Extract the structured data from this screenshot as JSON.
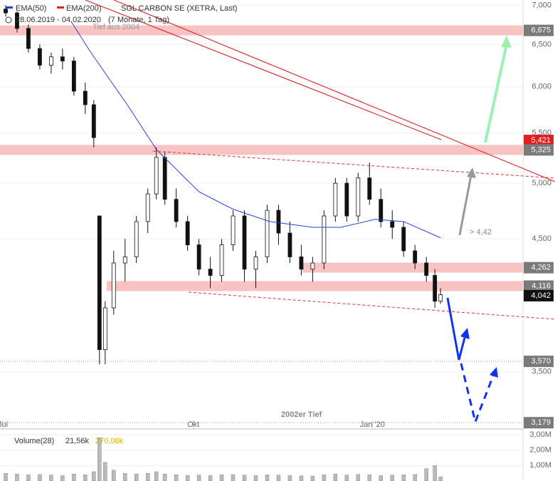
{
  "chart_data": {
    "type": "candlestick",
    "title": "SGL CARBON SE (XETRA, Last)",
    "subtitle": "28.06.2019 - 04.02.2020",
    "period": "(7 Monate, 1 Tag)",
    "log_scale": true,
    "ylim": [
      3150,
      7070
    ],
    "yticks": [
      {
        "value": 3500,
        "label": "3,500"
      },
      {
        "value": 4500,
        "label": "4,500"
      },
      {
        "value": 5000,
        "label": "5,000"
      },
      {
        "value": 5500,
        "label": "5,500"
      },
      {
        "value": 6000,
        "label": "6,000"
      },
      {
        "value": 6500,
        "label": "6,500"
      },
      {
        "value": 7000,
        "label": "7,000"
      }
    ],
    "xlim": [
      0,
      184
    ],
    "xticks": [
      {
        "value": 1,
        "label": "Jul"
      },
      {
        "value": 68,
        "label": "Okt"
      },
      {
        "value": 131,
        "label": "Jan '20"
      }
    ],
    "x": [
      2,
      6,
      10,
      14,
      18,
      22,
      26,
      30,
      33,
      35,
      37,
      40,
      44,
      48,
      52,
      55,
      58,
      62,
      66,
      70,
      74,
      78,
      82,
      86,
      90,
      94,
      98,
      102,
      106,
      110,
      114,
      118,
      122,
      126,
      130,
      134,
      138,
      142,
      146,
      150,
      153,
      155
    ],
    "open": [
      6950,
      6900,
      6700,
      6450,
      6250,
      6350,
      6300,
      5950,
      5800,
      4700,
      3650,
      3950,
      4300,
      4350,
      4650,
      4900,
      5250,
      4850,
      4650,
      4450,
      4250,
      4200,
      4450,
      4700,
      4250,
      4350,
      4750,
      4550,
      4350,
      4250,
      4300,
      4700,
      5000,
      4700,
      5050,
      4850,
      4650,
      4600,
      4400,
      4300,
      4200,
      4000
    ],
    "high": [
      7000,
      6920,
      6750,
      6500,
      6400,
      6450,
      6350,
      6050,
      5850,
      4700,
      4000,
      4400,
      4500,
      4700,
      4950,
      5350,
      5300,
      4950,
      4700,
      4500,
      4350,
      4500,
      4750,
      4750,
      4400,
      4800,
      4800,
      4650,
      4450,
      4350,
      4750,
      5050,
      5050,
      5100,
      5200,
      4950,
      4750,
      4650,
      4450,
      4350,
      4250,
      4100
    ],
    "low": [
      6850,
      6650,
      6400,
      6200,
      6150,
      6200,
      5900,
      5700,
      5350,
      3550,
      3550,
      3900,
      4150,
      4300,
      4550,
      4850,
      4800,
      4600,
      4400,
      4200,
      4100,
      4150,
      4400,
      4150,
      4100,
      4300,
      4450,
      4300,
      4200,
      4150,
      4250,
      4650,
      4650,
      4650,
      4800,
      4600,
      4500,
      4350,
      4250,
      4150,
      3950,
      3980
    ],
    "close": [
      6900,
      6700,
      6450,
      6250,
      6350,
      6300,
      5950,
      5800,
      5450,
      3650,
      3950,
      4300,
      4350,
      4650,
      4900,
      5250,
      4850,
      4650,
      4450,
      4250,
      4200,
      4450,
      4700,
      4250,
      4350,
      4750,
      4550,
      4350,
      4250,
      4300,
      4700,
      5000,
      4700,
      5050,
      4850,
      4650,
      4600,
      4400,
      4300,
      4200,
      4000,
      4050
    ],
    "series": [
      {
        "name": "EMA(50)",
        "color": "#2244dd",
        "x": [
          25,
          32,
          45,
          55,
          70,
          82,
          95,
          110,
          120,
          132,
          142,
          155
        ],
        "values": [
          6790,
          6400,
          5790,
          5330,
          4920,
          4760,
          4650,
          4600,
          4600,
          4670,
          4650,
          4510
        ]
      },
      {
        "name": "EMA(200)",
        "color": "#dd2222"
      }
    ],
    "levels": [
      {
        "value": 6675,
        "label": "6,675",
        "color": "#7a7a7a"
      },
      {
        "value": 5421,
        "label": "5,421",
        "color": "#e02020"
      },
      {
        "value": 5325,
        "label": "5,325",
        "color": "#7a7a7a"
      },
      {
        "value": 4262,
        "label": "4,262",
        "color": "#7a7a7a"
      },
      {
        "value": 4116,
        "label": "4,116",
        "color": "#7a7a7a"
      },
      {
        "value": 4042,
        "label": "4,042",
        "color": "#111111"
      },
      {
        "value": 3570,
        "label": "3,570",
        "color": "#7a7a7a"
      },
      {
        "value": 3179,
        "label": "3,179",
        "color": "#7a7a7a"
      }
    ],
    "annotations": [
      "Tief aus 2004",
      "> 4,42",
      "2002er Tief"
    ],
    "volume": {
      "name": "Volume(28)",
      "avg_label": "21,56k",
      "last_label": "270,08k",
      "ylim": [
        0,
        3230000
      ],
      "yticks": [
        {
          "value": 1000000,
          "label": "1,00M"
        },
        {
          "value": 2000000,
          "label": "2,00M"
        },
        {
          "value": 3000000,
          "label": "3,00M"
        }
      ],
      "values": [
        500000,
        450000,
        400000,
        420000,
        380000,
        350000,
        450000,
        400000,
        600000,
        2800000,
        1200000,
        700000,
        500000,
        450000,
        500000,
        600000,
        450000,
        400000,
        350000,
        380000,
        350000,
        400000,
        420000,
        380000,
        350000,
        400000,
        380000,
        350000,
        330000,
        320000,
        400000,
        450000,
        380000,
        420000,
        400000,
        350000,
        380000,
        400000,
        420000,
        800000,
        1000000,
        270080
      ]
    }
  }
}
